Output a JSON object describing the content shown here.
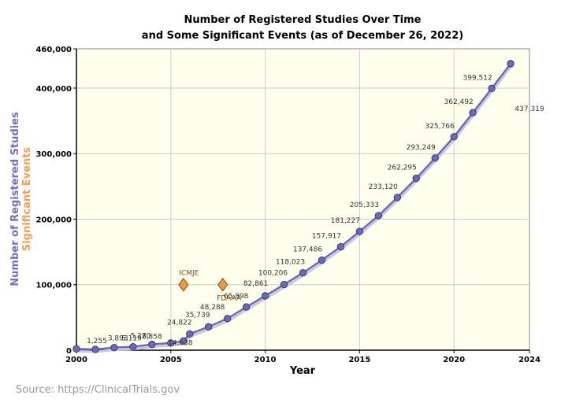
{
  "chart_data": {
    "type": "line",
    "title": [
      "Number of Registered Studies Over Time",
      "and Some Significant Events (as of December 26, 2022)"
    ],
    "xlabel": "Year",
    "ylabel_series": "Number of Registered Studies",
    "ylabel_events": "Significant Events",
    "xlim": [
      2000,
      2024
    ],
    "ylim": [
      0,
      460000
    ],
    "x_ticks": [
      2000,
      2005,
      2010,
      2015,
      2020,
      2024
    ],
    "y_ticks": [
      {
        "value": 0,
        "label": "0"
      },
      {
        "value": 100000,
        "label": "100,000"
      },
      {
        "value": 200000,
        "label": "200,000"
      },
      {
        "value": 300000,
        "label": "300,000"
      },
      {
        "value": 400000,
        "label": "400,000"
      },
      {
        "value": 460000,
        "label": "460,000"
      }
    ],
    "grid": true,
    "series": [
      {
        "name": "Number of Registered Studies",
        "color": "#6b6bb5",
        "x": [
          2000,
          2001,
          2002,
          2003,
          2004,
          2005,
          2005.67,
          2006,
          2007,
          2008,
          2009,
          2010,
          2011,
          2012,
          2013,
          2014,
          2015,
          2016,
          2017,
          2018,
          2019,
          2020,
          2021,
          2022,
          2023
        ],
        "values": [
          2000,
          1255,
          4000,
          5119,
          8858,
          11000,
          14038,
          24822,
          35739,
          48288,
          65898,
          82861,
          100206,
          118023,
          137486,
          157917,
          181227,
          205333,
          233120,
          262295,
          293249,
          325766,
          362492,
          399512,
          437319
        ],
        "labels": [
          "",
          "1,255",
          "",
          "5,119",
          "8,858",
          "",
          "14,038",
          "24,822",
          "35,739",
          "48,288",
          "65,898",
          "82,861",
          "100,206",
          "118,023",
          "137,486",
          "157,917",
          "181,227",
          "205,333",
          "233,120",
          "262,295",
          "293,249",
          "325,766",
          "362,492",
          "399,512",
          "437,319"
        ]
      }
    ],
    "partial_labels": [
      "3,893",
      "5,270"
    ],
    "events": [
      {
        "name": "ICMJE",
        "x": 2005.67,
        "y": 100000,
        "color": "#e89c4c"
      },
      {
        "name": "FDAAA",
        "x": 2007.75,
        "y": 100000,
        "color": "#e89c4c"
      }
    ],
    "colors": {
      "plot_bg": "#ffffee",
      "grid": "#cccccc",
      "series": "#6b6bb5",
      "marker_fill": "#6b6bb5",
      "marker_stroke": "#3a3a80",
      "event": "#e89c4c",
      "event_label": "#8b4513",
      "ylabel_series": "#7070c0",
      "ylabel_events": "#f0a050"
    }
  },
  "source": "Source: https://ClinicalTrials.gov"
}
